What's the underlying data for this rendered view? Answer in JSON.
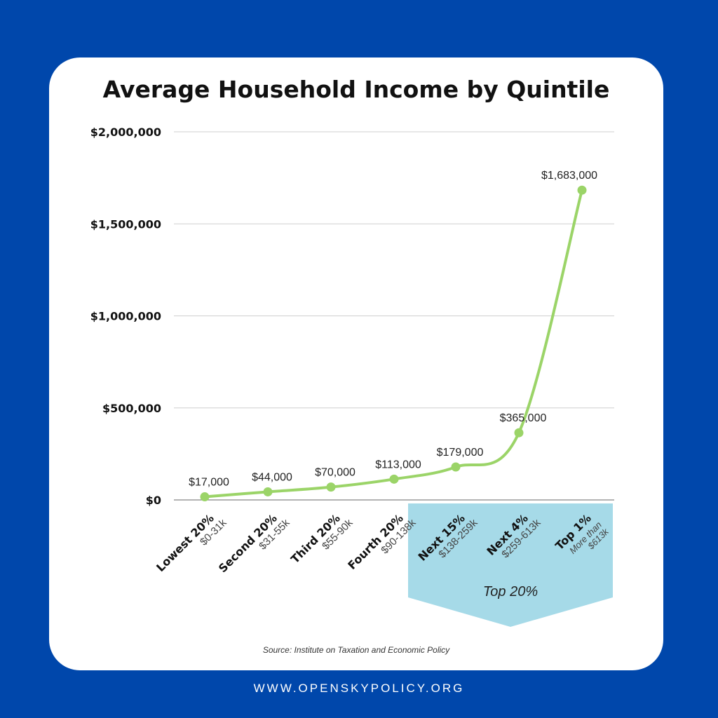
{
  "chart_data": {
    "type": "line",
    "title": "Average Household Income by Quintile",
    "categories": [
      {
        "name": "Lowest 20%",
        "range": "$0-31k"
      },
      {
        "name": "Second 20%",
        "range": "$31-55k"
      },
      {
        "name": "Third 20%",
        "range": "$55-90k"
      },
      {
        "name": "Fourth 20%",
        "range": "$90-138k"
      },
      {
        "name": "Next 15%",
        "range": "$138-259k"
      },
      {
        "name": "Next 4%",
        "range": "$259-613k"
      },
      {
        "name": "Top 1%",
        "range": "More than $613k",
        "range_lines": [
          "More than",
          "$613k"
        ]
      }
    ],
    "values": [
      17000,
      44000,
      70000,
      113000,
      179000,
      365000,
      1683000
    ],
    "data_labels": [
      "$17,000",
      "$44,000",
      "$70,000",
      "$113,000",
      "$179,000",
      "$365,000",
      "$1,683,000"
    ],
    "yticks": [
      0,
      500000,
      1000000,
      1500000,
      2000000
    ],
    "ytick_labels": [
      "$0",
      "$500,000",
      "$1,000,000",
      "$1,500,000",
      "$2,000,000"
    ],
    "ylim": [
      0,
      2000000
    ],
    "grid": true,
    "line_color": "#9BD468",
    "highlight": {
      "label": "Top 20%",
      "color": "#A6DAE8",
      "categories": [
        "Next 15%",
        "Next 4%",
        "Top 1%"
      ]
    }
  },
  "source": "Source: Institute on Taxation and Economic Policy",
  "footer": "WWW.OPENSKYPOLICY.ORG",
  "colors": {
    "background": "#0047AB",
    "card": "#FFFFFF",
    "text": "#111111"
  }
}
